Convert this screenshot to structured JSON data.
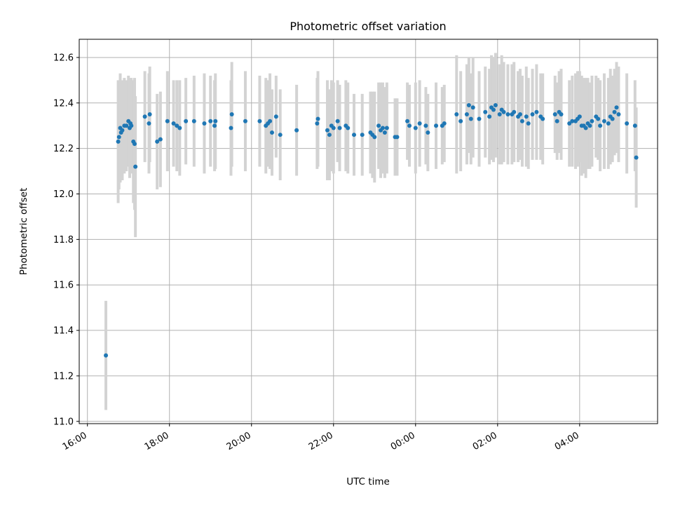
{
  "chart_data": {
    "type": "scatter",
    "title": "Photometric offset variation",
    "xlabel": "UTC time",
    "ylabel": "Photometric offset",
    "x_ticks": [
      "16:00",
      "18:00",
      "20:00",
      "22:00",
      "00:00",
      "02:00",
      "04:00"
    ],
    "x_tick_hours": [
      16,
      18,
      20,
      22,
      24,
      26,
      28
    ],
    "y_ticks": [
      "11.0",
      "11.2",
      "11.4",
      "11.6",
      "11.8",
      "12.0",
      "12.2",
      "12.4",
      "12.6"
    ],
    "xlim": [
      15.8,
      29.9
    ],
    "ylim": [
      10.99,
      12.68
    ],
    "grid": true,
    "colors": {
      "points": "#1f77b4",
      "errorbars": "#d3d3d3",
      "grid": "#b0b0b0"
    },
    "series": [
      {
        "x": [
          16.45,
          16.75,
          16.77,
          16.8,
          16.82,
          16.85,
          16.9,
          16.95,
          17.0,
          17.03,
          17.05,
          17.07,
          17.12,
          17.15,
          17.17,
          17.4,
          17.5,
          17.52,
          17.7,
          17.78,
          17.95,
          18.1,
          18.18,
          18.25,
          18.4,
          18.6,
          18.85,
          19.0,
          19.1,
          19.12,
          19.5,
          19.52,
          19.85,
          20.2,
          20.35,
          20.4,
          20.45,
          20.5,
          20.6,
          20.7,
          21.1,
          21.6,
          21.62,
          21.85,
          21.9,
          21.95,
          22.0,
          22.1,
          22.15,
          22.3,
          22.35,
          22.5,
          22.7,
          22.9,
          22.95,
          23.0,
          23.1,
          23.15,
          23.2,
          23.25,
          23.3,
          23.5,
          23.55,
          23.8,
          23.85,
          24.0,
          24.1,
          24.25,
          24.3,
          24.5,
          24.65,
          24.7,
          25.0,
          25.1,
          25.25,
          25.3,
          25.35,
          25.4,
          25.55,
          25.7,
          25.8,
          25.85,
          25.9,
          25.95,
          26.05,
          26.1,
          26.15,
          26.25,
          26.35,
          26.4,
          26.5,
          26.55,
          26.6,
          26.7,
          26.75,
          26.85,
          26.95,
          27.05,
          27.1,
          27.4,
          27.45,
          27.5,
          27.55,
          27.75,
          27.82,
          27.9,
          27.95,
          28.0,
          28.05,
          28.1,
          28.15,
          28.2,
          28.25,
          28.3,
          28.4,
          28.45,
          28.5,
          28.6,
          28.7,
          28.75,
          28.8,
          28.85,
          28.9,
          28.95,
          29.15,
          29.35,
          29.38
        ],
        "y": [
          11.29,
          12.23,
          12.25,
          12.29,
          12.27,
          12.28,
          12.3,
          12.3,
          12.32,
          12.29,
          12.31,
          12.3,
          12.23,
          12.22,
          12.12,
          12.34,
          12.31,
          12.35,
          12.23,
          12.24,
          12.32,
          12.31,
          12.3,
          12.29,
          12.32,
          12.32,
          12.31,
          12.32,
          12.3,
          12.32,
          12.29,
          12.35,
          12.32,
          12.32,
          12.3,
          12.31,
          12.32,
          12.27,
          12.34,
          12.26,
          12.28,
          12.31,
          12.33,
          12.28,
          12.26,
          12.3,
          12.29,
          12.32,
          12.29,
          12.3,
          12.29,
          12.26,
          12.26,
          12.27,
          12.26,
          12.25,
          12.3,
          12.28,
          12.29,
          12.27,
          12.29,
          12.25,
          12.25,
          12.32,
          12.3,
          12.29,
          12.31,
          12.3,
          12.27,
          12.3,
          12.3,
          12.31,
          12.35,
          12.32,
          12.35,
          12.39,
          12.33,
          12.38,
          12.33,
          12.36,
          12.34,
          12.38,
          12.37,
          12.39,
          12.35,
          12.37,
          12.36,
          12.35,
          12.35,
          12.36,
          12.34,
          12.35,
          12.32,
          12.34,
          12.31,
          12.35,
          12.36,
          12.34,
          12.33,
          12.35,
          12.32,
          12.36,
          12.35,
          12.31,
          12.32,
          12.32,
          12.33,
          12.34,
          12.3,
          12.3,
          12.29,
          12.31,
          12.3,
          12.32,
          12.34,
          12.33,
          12.3,
          12.32,
          12.31,
          12.34,
          12.33,
          12.36,
          12.38,
          12.35,
          12.31,
          12.3,
          12.16
        ],
        "err": [
          0.24,
          0.27,
          0.23,
          0.24,
          0.21,
          0.22,
          0.21,
          0.2,
          0.2,
          0.22,
          0.2,
          0.21,
          0.27,
          0.29,
          0.31,
          0.2,
          0.22,
          0.21,
          0.21,
          0.21,
          0.22,
          0.19,
          0.2,
          0.21,
          0.19,
          0.2,
          0.22,
          0.2,
          0.2,
          0.21,
          0.21,
          0.23,
          0.22,
          0.2,
          0.21,
          0.19,
          0.21,
          0.19,
          0.18,
          0.2,
          0.2,
          0.2,
          0.21,
          0.22,
          0.2,
          0.2,
          0.2,
          0.18,
          0.19,
          0.2,
          0.2,
          0.18,
          0.18,
          0.18,
          0.19,
          0.2,
          0.19,
          0.21,
          0.2,
          0.2,
          0.2,
          0.17,
          0.17,
          0.17,
          0.18,
          0.2,
          0.19,
          0.17,
          0.17,
          0.19,
          0.17,
          0.17,
          0.26,
          0.22,
          0.22,
          0.21,
          0.2,
          0.22,
          0.21,
          0.2,
          0.21,
          0.23,
          0.23,
          0.23,
          0.22,
          0.24,
          0.22,
          0.22,
          0.22,
          0.22,
          0.2,
          0.2,
          0.2,
          0.22,
          0.2,
          0.2,
          0.21,
          0.19,
          0.2,
          0.17,
          0.17,
          0.18,
          0.2,
          0.19,
          0.2,
          0.21,
          0.21,
          0.2,
          0.22,
          0.21,
          0.22,
          0.2,
          0.19,
          0.2,
          0.18,
          0.18,
          0.2,
          0.21,
          0.2,
          0.21,
          0.19,
          0.19,
          0.2,
          0.21,
          0.22,
          0.2,
          0.22
        ]
      }
    ]
  }
}
